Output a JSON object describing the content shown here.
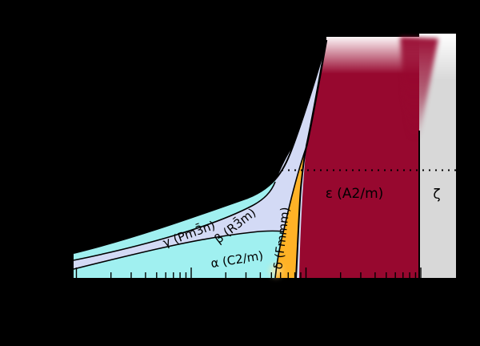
{
  "chart_data": {
    "type": "area",
    "title": "",
    "subtitle": "",
    "axis_labels_visible": false,
    "x_scale": "log",
    "regions": [
      {
        "name": "gamma",
        "label": "γ (Pm3̄n)",
        "color": "#a0f0f0"
      },
      {
        "name": "beta",
        "label": "β (R3̄m)",
        "color": "#d3daf5"
      },
      {
        "name": "alpha",
        "label": "α (C2/m)",
        "color": "#a0f0f0"
      },
      {
        "name": "delta",
        "label": "δ (Fmmm)",
        "color": "#ffb226"
      },
      {
        "name": "epsilon",
        "label": "ε (A2/m)",
        "color": "#97082f"
      },
      {
        "name": "zeta",
        "label": "ζ",
        "color": "#d8d8d8"
      }
    ],
    "boundaries": [
      {
        "name": "melting-line",
        "style": "solid"
      },
      {
        "name": "gamma-beta",
        "style": "solid"
      },
      {
        "name": "beta-alpha",
        "style": "solid"
      },
      {
        "name": "alpha-delta",
        "style": "solid"
      },
      {
        "name": "delta-epsilon",
        "style": "solid"
      },
      {
        "name": "beta-epsilon",
        "style": "solid"
      },
      {
        "name": "epsilon-zeta",
        "style": "solid"
      },
      {
        "name": "reference-line",
        "style": "dotted"
      }
    ],
    "tick_values_gpa": [
      0.1,
      0.2,
      0.3,
      0.4,
      0.5,
      0.6,
      0.7,
      0.8,
      0.9,
      1,
      2,
      3,
      4,
      5,
      6,
      7,
      8,
      9,
      10,
      20,
      30,
      40,
      50,
      60,
      70,
      80,
      90,
      100
    ],
    "major_tick_values_gpa": [
      0.1,
      1,
      10,
      100
    ],
    "colors": {
      "background": "#000000",
      "boundary_line": "#000000",
      "tick": "#000000",
      "fade_top": "#ffffff"
    }
  }
}
